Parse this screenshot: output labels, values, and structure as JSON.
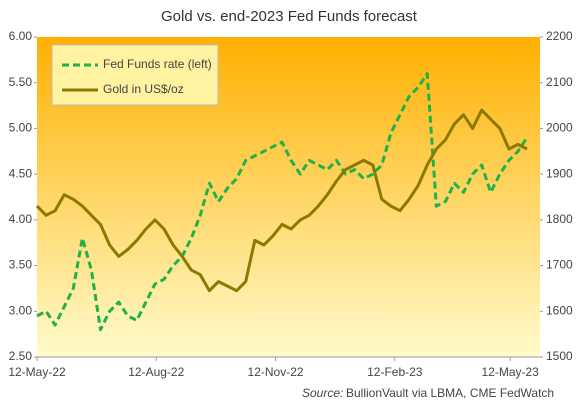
{
  "chart_data": {
    "type": "line",
    "title": "Gold vs. end-2023 Fed Funds forecast",
    "source_label": "Source:",
    "source": "BullionVault via LBMA, CME FedWatch",
    "x": [
      "2022-05-12",
      "2022-05-19",
      "2022-05-26",
      "2022-06-02",
      "2022-06-09",
      "2022-06-16",
      "2022-06-23",
      "2022-06-30",
      "2022-07-07",
      "2022-07-14",
      "2022-07-21",
      "2022-07-28",
      "2022-08-04",
      "2022-08-11",
      "2022-08-18",
      "2022-08-25",
      "2022-09-01",
      "2022-09-08",
      "2022-09-15",
      "2022-09-22",
      "2022-09-29",
      "2022-10-06",
      "2022-10-13",
      "2022-10-20",
      "2022-10-27",
      "2022-11-03",
      "2022-11-10",
      "2022-11-17",
      "2022-11-24",
      "2022-12-01",
      "2022-12-08",
      "2022-12-15",
      "2022-12-22",
      "2022-12-29",
      "2023-01-05",
      "2023-01-12",
      "2023-01-19",
      "2023-01-26",
      "2023-02-02",
      "2023-02-09",
      "2023-02-16",
      "2023-02-23",
      "2023-03-02",
      "2023-03-09",
      "2023-03-16",
      "2023-03-23",
      "2023-03-30",
      "2023-04-06",
      "2023-04-13",
      "2023-04-20",
      "2023-04-27",
      "2023-05-04",
      "2023-05-11",
      "2023-05-18",
      "2023-05-25"
    ],
    "series": [
      {
        "name": "Fed Funds rate (left)",
        "color": "#1fb24a",
        "dashed": true,
        "axis": "y",
        "values": [
          2.95,
          3.0,
          2.85,
          3.05,
          3.25,
          3.8,
          3.45,
          2.8,
          3.0,
          3.1,
          2.95,
          2.9,
          3.1,
          3.3,
          3.35,
          3.5,
          3.6,
          3.8,
          4.05,
          4.4,
          4.2,
          4.35,
          4.45,
          4.65,
          4.7,
          4.75,
          4.8,
          4.85,
          4.65,
          4.5,
          4.65,
          4.6,
          4.55,
          4.65,
          4.5,
          4.55,
          4.45,
          4.5,
          4.6,
          4.95,
          5.15,
          5.35,
          5.45,
          5.6,
          4.15,
          4.2,
          4.4,
          4.3,
          4.5,
          4.6,
          4.3,
          4.5,
          4.65,
          4.75,
          4.9
        ]
      },
      {
        "name": "Gold in US$/oz",
        "color": "#8a7a00",
        "dashed": false,
        "axis": "y2",
        "values": [
          1830,
          1810,
          1820,
          1855,
          1845,
          1830,
          1810,
          1790,
          1745,
          1720,
          1735,
          1755,
          1780,
          1800,
          1780,
          1745,
          1720,
          1690,
          1680,
          1645,
          1665,
          1655,
          1645,
          1665,
          1755,
          1745,
          1765,
          1790,
          1780,
          1800,
          1810,
          1830,
          1855,
          1885,
          1910,
          1920,
          1930,
          1920,
          1845,
          1830,
          1820,
          1845,
          1875,
          1920,
          1955,
          1975,
          2010,
          2030,
          2000,
          2040,
          2020,
          2000,
          1955,
          1965,
          1955
        ]
      }
    ],
    "xlim": [
      "2022-05-12",
      "2023-06-04"
    ],
    "xticks": [
      {
        "value": "2022-05-12",
        "label": "12-May-22"
      },
      {
        "value": "2022-08-12",
        "label": "12-Aug-22"
      },
      {
        "value": "2022-11-12",
        "label": "12-Nov-22"
      },
      {
        "value": "2023-02-12",
        "label": "12-Feb-23"
      },
      {
        "value": "2023-05-12",
        "label": "12-May-23"
      }
    ],
    "ylim": [
      2.5,
      6.0
    ],
    "yticks": [
      {
        "value": 2.5,
        "label": "2.50"
      },
      {
        "value": 3.0,
        "label": "3.00"
      },
      {
        "value": 3.5,
        "label": "3.50"
      },
      {
        "value": 4.0,
        "label": "4.00"
      },
      {
        "value": 4.5,
        "label": "4.50"
      },
      {
        "value": 5.0,
        "label": "5.00"
      },
      {
        "value": 5.5,
        "label": "5.50"
      },
      {
        "value": 6.0,
        "label": "6.00"
      }
    ],
    "y2lim": [
      1500,
      2200
    ],
    "y2ticks": [
      1500,
      1600,
      1700,
      1800,
      1900,
      2000,
      2100,
      2200
    ]
  }
}
